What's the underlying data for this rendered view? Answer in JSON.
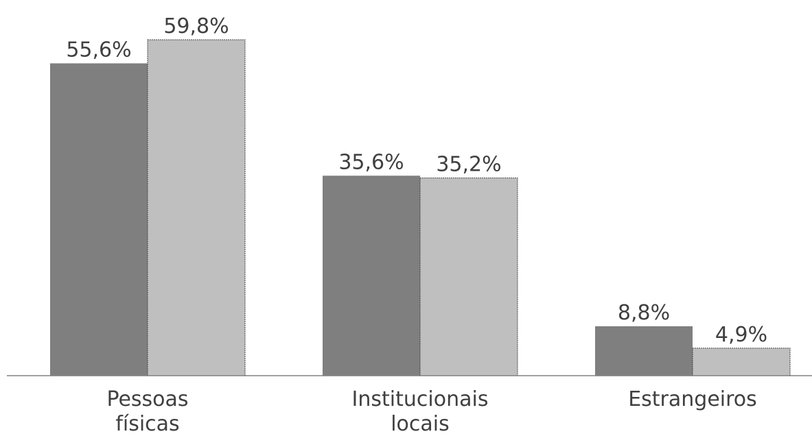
{
  "chart_data": {
    "type": "bar",
    "categories": [
      [
        "Pessoas",
        "físicas"
      ],
      [
        "Institucionais",
        "locais"
      ],
      [
        "Estrangeiros"
      ]
    ],
    "series": [
      {
        "values": [
          55.6,
          35.6,
          8.8
        ],
        "labels": [
          "55,6%",
          "35,6%",
          "8,8%"
        ],
        "color": "#7f7f7f"
      },
      {
        "values": [
          59.8,
          35.2,
          4.9
        ],
        "labels": [
          "59,8%",
          "35,2%",
          "4,9%"
        ],
        "color": "#bfbfbf"
      }
    ],
    "ylim": [
      0,
      65
    ],
    "grid": false,
    "legend": "none",
    "title": "",
    "xlabel": "",
    "ylabel": ""
  }
}
